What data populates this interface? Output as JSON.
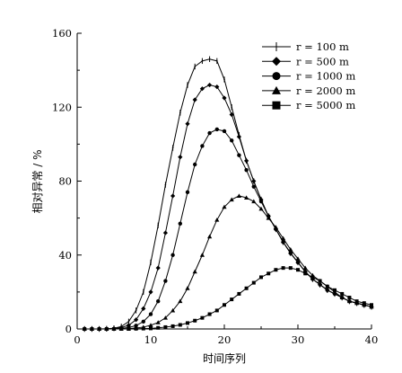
{
  "chart_data": {
    "type": "line",
    "xlabel": "时间序列",
    "ylabel": "相对异常 / %",
    "xlim": [
      0,
      40
    ],
    "ylim": [
      0,
      160
    ],
    "x_ticks": [
      0,
      10,
      20,
      30,
      40
    ],
    "y_ticks": [
      0,
      40,
      80,
      120,
      160
    ],
    "grid": false,
    "legend_position": "top-right",
    "x": [
      1,
      2,
      3,
      4,
      5,
      6,
      7,
      8,
      9,
      10,
      11,
      12,
      13,
      14,
      15,
      16,
      17,
      18,
      19,
      20,
      21,
      22,
      23,
      24,
      25,
      26,
      27,
      28,
      29,
      30,
      31,
      32,
      33,
      34,
      35,
      36,
      37,
      38,
      39,
      40
    ],
    "series": [
      {
        "name": "r = 100 m",
        "marker": "plus",
        "values": [
          0.0,
          0.0,
          0.0,
          0.1,
          0.4,
          1.3,
          4,
          10,
          20,
          36,
          56,
          78,
          98,
          117,
          132,
          142,
          145,
          146,
          145,
          135,
          120,
          105,
          91,
          80,
          70,
          61,
          54,
          47,
          41,
          36,
          31,
          27,
          24,
          21,
          19,
          17,
          15,
          14,
          13,
          12
        ]
      },
      {
        "name": "r = 500 m",
        "marker": "diamond",
        "values": [
          0.0,
          0.0,
          0.0,
          0.0,
          0.2,
          0.8,
          2.0,
          5,
          11,
          20,
          33,
          52,
          72,
          93,
          111,
          124,
          130,
          132,
          131,
          125,
          116,
          104,
          91,
          80,
          70,
          61,
          54,
          47,
          41,
          36,
          31,
          27,
          24,
          21,
          19,
          17,
          15,
          14,
          13,
          12
        ]
      },
      {
        "name": "r = 1000 m",
        "marker": "circle",
        "values": [
          0.0,
          0.0,
          0.0,
          0.0,
          0.1,
          0.3,
          0.8,
          1.8,
          4,
          8,
          15,
          26,
          40,
          57,
          74,
          89,
          99,
          106,
          108,
          107,
          102,
          94,
          86,
          77,
          69,
          61,
          54,
          47,
          41,
          36,
          31,
          27,
          24,
          21,
          19,
          17,
          15,
          14,
          13,
          12
        ]
      },
      {
        "name": "r = 2000 m",
        "marker": "triangle",
        "values": [
          0.0,
          0.0,
          0.0,
          0.0,
          0.0,
          0.1,
          0.2,
          0.5,
          1.0,
          2.0,
          3.5,
          6,
          10,
          15,
          22,
          31,
          40,
          50,
          59,
          66,
          70,
          72,
          71,
          69,
          65,
          60,
          55,
          49,
          43,
          38,
          33,
          29,
          26,
          23,
          20,
          17,
          15,
          14,
          13,
          12
        ]
      },
      {
        "name": "r = 5000 m",
        "marker": "square",
        "values": [
          0.0,
          0.0,
          0.0,
          0.0,
          0.0,
          0.0,
          0.0,
          0.1,
          0.2,
          0.3,
          0.6,
          1.0,
          1.5,
          2.2,
          3.2,
          4.5,
          6,
          8,
          10,
          13,
          16,
          19,
          22,
          25,
          28,
          30,
          32,
          33,
          33,
          32,
          30,
          28,
          26,
          23,
          21,
          19,
          17,
          15,
          14,
          13
        ]
      }
    ]
  }
}
